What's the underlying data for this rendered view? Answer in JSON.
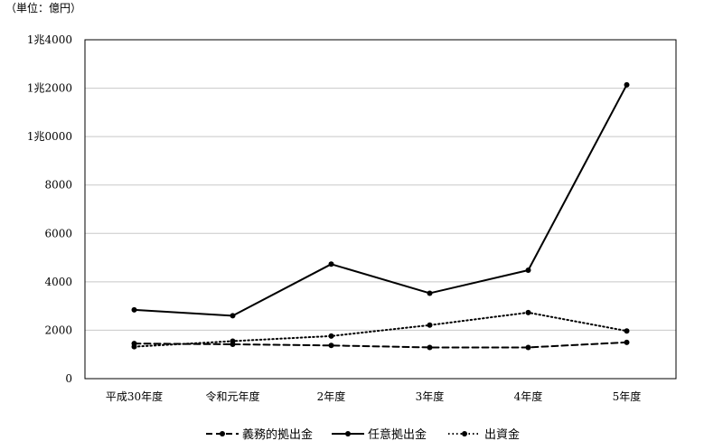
{
  "chart_data": {
    "type": "line",
    "unit_label": "（単位：億円）",
    "categories": [
      "平成30年度",
      "令和元年度",
      "2年度",
      "3年度",
      "4年度",
      "5年度"
    ],
    "ylim": [
      0,
      14000
    ],
    "y_ticks": [
      0,
      2000,
      4000,
      6000,
      8000,
      10000,
      12000,
      14000
    ],
    "y_tick_labels": [
      "0",
      "2000",
      "4000",
      "6000",
      "8000",
      "1兆0000",
      "1兆2000",
      "1兆4000"
    ],
    "grid": true,
    "legend_position": "bottom",
    "series": [
      {
        "name": "義務的拠出金",
        "style": "dashed",
        "values": [
          1450,
          1420,
          1370,
          1290,
          1290,
          1500
        ]
      },
      {
        "name": "任意拠出金",
        "style": "solid",
        "values": [
          2840,
          2600,
          4730,
          3530,
          4480,
          12140
        ]
      },
      {
        "name": "出資金",
        "style": "dotted",
        "values": [
          1320,
          1550,
          1760,
          2210,
          2730,
          1970
        ]
      }
    ]
  }
}
